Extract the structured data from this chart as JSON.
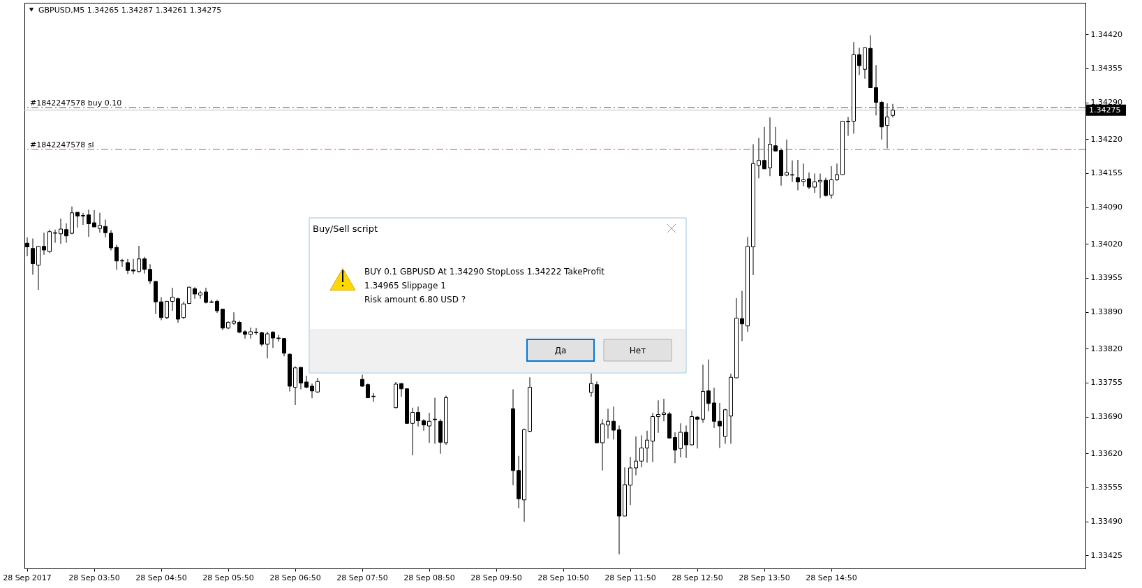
{
  "chart_data": {
    "type": "candlestick",
    "title": "GBPUSD,M5  1.34265 1.34287 1.34261 1.34275",
    "color": "#000000",
    "categories": [
      "28 Sep 2017",
      null,
      null,
      null,
      null,
      null,
      null,
      null,
      null,
      null,
      null,
      null,
      "28 Sep 03:50",
      null,
      null,
      null,
      null,
      null,
      null,
      null,
      null,
      null,
      null,
      null,
      "28 Sep 04:50",
      null,
      null,
      null,
      null,
      null,
      null,
      null,
      null,
      null,
      null,
      null,
      "28 Sep 05:50",
      null,
      null,
      null,
      null,
      null,
      null,
      null,
      null,
      null,
      null,
      null,
      "28 Sep 06:50",
      null,
      null,
      null,
      null,
      null,
      null,
      null,
      null,
      null,
      null,
      null,
      "28 Sep 07:50",
      null,
      null,
      null,
      null,
      null,
      null,
      null,
      null,
      null,
      null,
      null,
      "28 Sep 08:50",
      null,
      null,
      null,
      null,
      null,
      null,
      null,
      null,
      null,
      null,
      null,
      "28 Sep 09:50",
      null,
      null,
      null,
      null,
      null,
      null,
      null,
      null,
      null,
      null,
      null,
      "28 Sep 10:50",
      null,
      null,
      null,
      null,
      null,
      null,
      null,
      null,
      null,
      null,
      null,
      "28 Sep 11:50",
      null,
      null,
      null,
      null,
      null,
      null,
      null,
      null,
      null,
      null,
      null,
      "28 Sep 12:50",
      null,
      null,
      null,
      null,
      null,
      null,
      null,
      null,
      null,
      null,
      null,
      "28 Sep 13:50",
      null,
      null,
      null,
      null,
      null,
      null,
      null,
      null,
      null,
      null,
      null,
      "28 Sep 14:50",
      null,
      null,
      null,
      null,
      null,
      null,
      null,
      null,
      null,
      null,
      null,
      null,
      null,
      null,
      null,
      null,
      null,
      null,
      null,
      null,
      null,
      null,
      null,
      null,
      null,
      null,
      null,
      null,
      null,
      null,
      null,
      null,
      null,
      null,
      null,
      null,
      null,
      null,
      null,
      null,
      null,
      null,
      null,
      null,
      null
    ],
    "ohlc": [
      [
        1.34021,
        1.34032,
        1.33996,
        1.34014
      ],
      [
        1.34011,
        1.3403,
        1.33961,
        1.33982
      ],
      [
        1.33979,
        1.34016,
        1.33932,
        1.34015
      ],
      [
        1.34015,
        1.34041,
        1.33999,
        1.34008
      ],
      [
        1.34005,
        1.34047,
        1.34002,
        1.34043
      ],
      [
        1.3404,
        1.34047,
        1.34022,
        1.34041
      ],
      [
        1.34039,
        1.34068,
        1.3402,
        1.34048
      ],
      [
        1.34047,
        1.34059,
        1.34022,
        1.34035
      ],
      [
        1.3404,
        1.34091,
        1.34038,
        1.34079
      ],
      [
        1.3408,
        1.3408,
        1.34051,
        1.34073
      ],
      [
        1.34074,
        1.34079,
        1.34056,
        1.34073
      ],
      [
        1.34075,
        1.34085,
        1.34033,
        1.34058
      ],
      [
        1.3406,
        1.34084,
        1.34052,
        1.34052
      ],
      [
        1.34049,
        1.34079,
        1.34041,
        1.34055
      ],
      [
        1.34053,
        1.34066,
        1.34032,
        1.34041
      ],
      [
        1.3404,
        1.34046,
        1.34007,
        1.34012
      ],
      [
        1.34013,
        1.34018,
        1.3397,
        1.33987
      ],
      [
        1.33988,
        1.33991,
        1.33976,
        1.33987
      ],
      [
        1.33984,
        1.33991,
        1.33962,
        1.33969
      ],
      [
        1.3397,
        1.33991,
        1.33962,
        1.33968
      ],
      [
        1.33967,
        1.34016,
        1.33965,
        1.33991
      ],
      [
        1.33991,
        1.33995,
        1.33963,
        1.33971
      ],
      [
        1.33971,
        1.33981,
        1.33943,
        1.33949
      ],
      [
        1.33948,
        1.33949,
        1.33886,
        1.33909
      ],
      [
        1.33909,
        1.33918,
        1.33874,
        1.33879
      ],
      [
        1.33879,
        1.33911,
        1.33876,
        1.3391
      ],
      [
        1.3391,
        1.33936,
        1.33892,
        1.33918
      ],
      [
        1.33915,
        1.33917,
        1.33869,
        1.33876
      ],
      [
        1.33879,
        1.33909,
        1.33876,
        1.33905
      ],
      [
        1.33906,
        1.33938,
        1.33905,
        1.33937
      ],
      [
        1.33934,
        1.33937,
        1.33915,
        1.33924
      ],
      [
        1.33922,
        1.3393,
        1.33915,
        1.33926
      ],
      [
        1.33928,
        1.33936,
        1.33906,
        1.33908
      ],
      [
        1.33909,
        1.33913,
        1.33907,
        1.33908
      ],
      [
        1.3391,
        1.33913,
        1.33888,
        1.33892
      ],
      [
        1.33895,
        1.33895,
        1.33855,
        1.33859
      ],
      [
        1.33859,
        1.33872,
        1.33857,
        1.3387
      ],
      [
        1.33868,
        1.33889,
        1.33865,
        1.33872
      ],
      [
        1.3387,
        1.33873,
        1.33849,
        1.33851
      ],
      [
        1.33852,
        1.33855,
        1.33839,
        1.33847
      ],
      [
        1.33847,
        1.3386,
        1.33839,
        1.33852
      ],
      [
        1.33851,
        1.33859,
        1.33846,
        1.3385
      ],
      [
        1.3385,
        1.33852,
        1.33824,
        1.33828
      ],
      [
        1.33828,
        1.33852,
        1.33801,
        1.33848
      ],
      [
        1.33851,
        1.33853,
        1.33821,
        1.3384
      ],
      [
        1.3384,
        1.33846,
        1.33833,
        1.33839
      ],
      [
        1.33839,
        1.3384,
        1.33805,
        1.33811
      ],
      [
        1.33809,
        1.33811,
        1.33738,
        1.33748
      ],
      [
        1.33746,
        1.33786,
        1.33712,
        1.33783
      ],
      [
        1.33784,
        1.33784,
        1.33742,
        1.33754
      ],
      [
        1.33756,
        1.33768,
        1.33744,
        1.33746
      ],
      [
        1.33748,
        1.33753,
        1.33725,
        1.33739
      ],
      [
        1.33737,
        1.33764,
        1.33735,
        1.33757
      ],
      null,
      null,
      null,
      null,
      null,
      null,
      null,
      [
        1.33761,
        1.3377,
        1.33747,
        1.33748
      ],
      [
        1.33751,
        1.33753,
        1.33725,
        1.33726
      ],
      [
        1.33729,
        1.33735,
        1.33718,
        1.33728
      ],
      null,
      null,
      null,
      [
        1.33707,
        1.33756,
        1.33706,
        1.33752
      ],
      [
        1.33753,
        1.33754,
        1.33728,
        1.33743
      ],
      [
        1.33743,
        1.33744,
        1.33676,
        1.33677
      ],
      [
        1.33677,
        1.33707,
        1.33616,
        1.33698
      ],
      [
        1.33698,
        1.33709,
        1.33671,
        1.33682
      ],
      [
        1.33682,
        1.33685,
        1.33663,
        1.33674
      ],
      [
        1.33672,
        1.33697,
        1.3364,
        1.33681
      ],
      [
        1.33685,
        1.33726,
        1.33638,
        1.33684
      ],
      [
        1.33681,
        1.33685,
        1.33619,
        1.33641
      ],
      [
        1.3364,
        1.3373,
        1.33636,
        1.33726
      ],
      null,
      null,
      null,
      null,
      null,
      null,
      null,
      null,
      null,
      null,
      null,
      [
        1.33705,
        1.33742,
        1.33559,
        1.33587
      ],
      [
        1.33587,
        1.33615,
        1.33515,
        1.33533
      ],
      [
        1.33531,
        1.33667,
        1.33489,
        1.33665
      ],
      [
        1.33662,
        1.33765,
        1.3366,
        1.33746
      ],
      null,
      null,
      null,
      null,
      null,
      null,
      null,
      null,
      null,
      null,
      [
        1.33736,
        1.33772,
        1.33728,
        1.33753
      ],
      [
        1.33751,
        1.33757,
        1.33639,
        1.3364
      ],
      [
        1.3364,
        1.33685,
        1.33587,
        1.33676
      ],
      [
        1.33674,
        1.33705,
        1.33648,
        1.33681
      ],
      [
        1.33681,
        1.33709,
        1.33646,
        1.33664
      ],
      [
        1.33665,
        1.33673,
        1.33427,
        1.335
      ],
      [
        1.335,
        1.33593,
        1.335,
        1.3356
      ],
      [
        1.33559,
        1.33613,
        1.33521,
        1.33592
      ],
      [
        1.33592,
        1.33652,
        1.33578,
        1.33605
      ],
      [
        1.33605,
        1.33654,
        1.33593,
        1.3363
      ],
      [
        1.3363,
        1.33663,
        1.33602,
        1.33645
      ],
      [
        1.33643,
        1.33697,
        1.33603,
        1.3369
      ],
      [
        1.3369,
        1.33721,
        1.33659,
        1.33694
      ],
      [
        1.33694,
        1.33724,
        1.33681,
        1.33697
      ],
      [
        1.33695,
        1.33699,
        1.33648,
        1.33649
      ],
      [
        1.3365,
        1.3366,
        1.33601,
        1.33626
      ],
      [
        1.33629,
        1.33677,
        1.33612,
        1.3366
      ],
      [
        1.3366,
        1.33673,
        1.33611,
        1.33636
      ],
      [
        1.33636,
        1.33701,
        1.33635,
        1.3369
      ],
      [
        1.33689,
        1.33691,
        1.33629,
        1.33685
      ],
      [
        1.33685,
        1.33789,
        1.33678,
        1.33738
      ],
      [
        1.33739,
        1.33799,
        1.337,
        1.33715
      ],
      [
        1.33716,
        1.33745,
        1.33668,
        1.33681
      ],
      [
        1.33681,
        1.33716,
        1.3363,
        1.33672
      ],
      [
        1.33652,
        1.33705,
        1.33638,
        1.33703
      ],
      [
        1.33691,
        1.33772,
        1.33638,
        1.33765
      ],
      [
        1.33764,
        1.33916,
        1.33763,
        1.33878
      ],
      [
        1.33877,
        1.3393,
        1.33834,
        1.33867
      ],
      [
        1.33863,
        1.34033,
        1.33852,
        1.34015
      ],
      [
        1.34014,
        1.3421,
        1.3396,
        1.34173
      ],
      [
        1.3417,
        1.34222,
        1.34145,
        1.34179
      ],
      [
        1.34179,
        1.34243,
        1.34162,
        1.34163
      ],
      [
        1.34165,
        1.34261,
        1.34149,
        1.3421
      ],
      [
        1.34207,
        1.34243,
        1.34197,
        1.34197
      ],
      [
        1.34198,
        1.34202,
        1.34131,
        1.3415
      ],
      [
        1.34151,
        1.34219,
        1.34149,
        1.34156
      ],
      [
        1.34151,
        1.34179,
        1.34138,
        1.34152
      ],
      [
        1.34146,
        1.3418,
        1.34122,
        1.34138
      ],
      [
        1.34139,
        1.34173,
        1.3413,
        1.34142
      ],
      [
        1.34144,
        1.34156,
        1.34124,
        1.34128
      ],
      [
        1.34128,
        1.34154,
        1.34117,
        1.34138
      ],
      [
        1.34138,
        1.34154,
        1.34107,
        1.34141
      ],
      [
        1.34141,
        1.34146,
        1.3411,
        1.34112
      ],
      [
        1.34113,
        1.34168,
        1.34106,
        1.34142
      ],
      [
        1.34142,
        1.34173,
        1.3414,
        1.34152
      ],
      [
        1.34152,
        1.34254,
        1.34152,
        1.34254
      ],
      [
        1.34254,
        1.34262,
        1.34226,
        1.34253
      ],
      [
        1.34254,
        1.34405,
        1.3423,
        1.34381
      ],
      [
        1.34381,
        1.34394,
        1.34342,
        1.3436
      ],
      [
        1.34353,
        1.34395,
        1.34335,
        1.34394
      ],
      [
        1.34393,
        1.34418,
        1.34318,
        1.34318
      ],
      [
        1.34318,
        1.34361,
        1.34265,
        1.3429
      ],
      [
        1.3429,
        1.34293,
        1.34219,
        1.34243
      ],
      [
        1.34246,
        1.34288,
        1.34202,
        1.34262
      ],
      [
        1.34265,
        1.34287,
        1.34261,
        1.34275
      ],
      null,
      null,
      null,
      null,
      null,
      null,
      null,
      null,
      null,
      null,
      null,
      null,
      null,
      null,
      null,
      null,
      null,
      null,
      null,
      null,
      null,
      null,
      null,
      null,
      null,
      null,
      null,
      null,
      null,
      null,
      null,
      null,
      null,
      null
    ],
    "ylim": [
      1.334,
      1.3448
    ],
    "yticks": [
      {
        "value": 1.3442,
        "label": "1.34420"
      },
      {
        "value": 1.34355,
        "label": "1.34355"
      },
      {
        "value": 1.3429,
        "label": "1.34290"
      },
      {
        "value": 1.3422,
        "label": "1.34220"
      },
      {
        "value": 1.34155,
        "label": "1.34155"
      },
      {
        "value": 1.3409,
        "label": "1.34090"
      },
      {
        "value": 1.3402,
        "label": "1.34020"
      },
      {
        "value": 1.33955,
        "label": "1.33955"
      },
      {
        "value": 1.3389,
        "label": "1.33890"
      },
      {
        "value": 1.3382,
        "label": "1.33820"
      },
      {
        "value": 1.33755,
        "label": "1.33755"
      },
      {
        "value": 1.3369,
        "label": "1.33690"
      },
      {
        "value": 1.3362,
        "label": "1.33620"
      },
      {
        "value": 1.33555,
        "label": "1.33555"
      },
      {
        "value": 1.3349,
        "label": "1.33490"
      },
      {
        "value": 1.33425,
        "label": "1.33425"
      }
    ],
    "ref_lines": [
      {
        "axis": "y",
        "value": 1.34275,
        "color": "#c0c0c0",
        "line_style": "solid"
      },
      {
        "axis": "y",
        "value": 1.3428,
        "label": "#1842247578 buy 0.10",
        "color": "#008000",
        "line_style": "dashed"
      },
      {
        "axis": "y",
        "value": 1.342,
        "label": "#1842247578 sl",
        "color": "#ff4500",
        "line_style": "dashed"
      }
    ],
    "annotations": [
      "1.34275",
      "Buy/Sell script",
      "BUY  0.1  GBPUSD    At 1.34290    StopLoss 1.34222    TakeProfit",
      "1.34965    Slippage 1",
      "Risk amount 6.80 USD ?",
      "Да",
      "Нет"
    ]
  }
}
